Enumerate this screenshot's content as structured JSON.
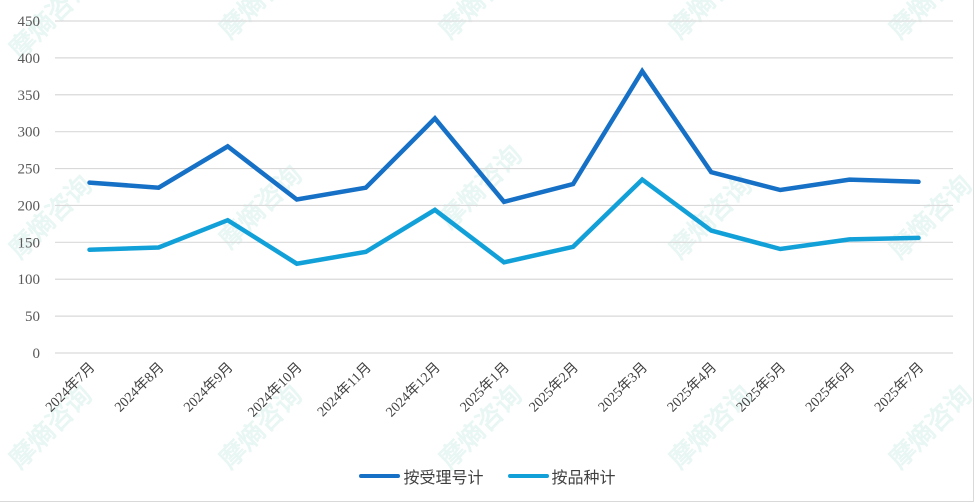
{
  "chart_data": {
    "type": "line",
    "title": "",
    "xlabel": "",
    "ylabel": "",
    "ylim": [
      0,
      450
    ],
    "yticks": [
      0,
      50,
      100,
      150,
      200,
      250,
      300,
      350,
      400,
      450
    ],
    "grid": true,
    "legend_position": "bottom",
    "categories": [
      "2024年7月",
      "2024年8月",
      "2024年9月",
      "2024年10月",
      "2024年11月",
      "2024年12月",
      "2025年1月",
      "2025年2月",
      "2025年3月",
      "2025年4月",
      "2025年5月",
      "2025年6月",
      "2025年7月"
    ],
    "series": [
      {
        "name": "按受理号计",
        "color": "#1570c6",
        "values": [
          231,
          224,
          280,
          208,
          224,
          318,
          205,
          229,
          382,
          245,
          221,
          235,
          232
        ]
      },
      {
        "name": "按品种计",
        "color": "#12a0d8",
        "values": [
          140,
          143,
          180,
          121,
          137,
          194,
          123,
          144,
          235,
          166,
          141,
          154,
          156
        ]
      }
    ]
  },
  "watermark": "摩熵咨询",
  "legend": {
    "items": [
      {
        "label": "按受理号计",
        "color": "#1570c6"
      },
      {
        "label": "按品种计",
        "color": "#12a0d8"
      }
    ]
  }
}
